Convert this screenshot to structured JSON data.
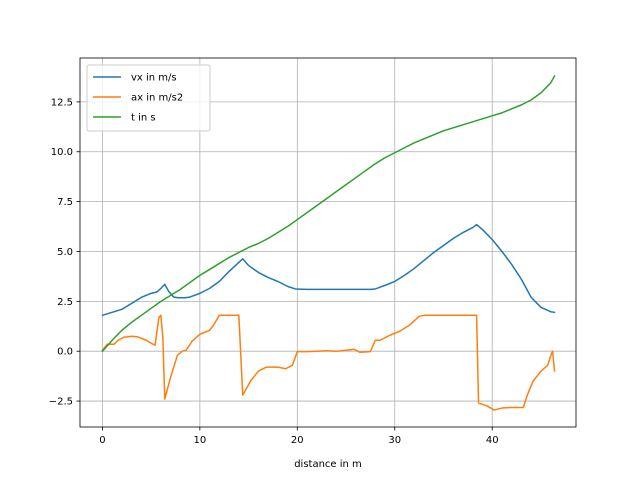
{
  "chart_data": {
    "type": "line",
    "title": "",
    "xlabel": "distance in m",
    "ylabel": "",
    "xlim": [
      -2.3,
      48.6
    ],
    "ylim": [
      -3.8,
      14.7
    ],
    "xticks": [
      0,
      10,
      20,
      30,
      40
    ],
    "yticks": [
      -2.5,
      0.0,
      2.5,
      5.0,
      7.5,
      10.0,
      12.5
    ],
    "xtick_labels": [
      "0",
      "10",
      "20",
      "30",
      "40"
    ],
    "ytick_labels": [
      "−2.5",
      "0.0",
      "2.5",
      "5.0",
      "7.5",
      "10.0",
      "12.5"
    ],
    "grid": true,
    "legend_position": "upper-left",
    "series": [
      {
        "name": "vx in m/s",
        "color": "#1f77b4",
        "points": [
          [
            0,
            1.8
          ],
          [
            1,
            1.95
          ],
          [
            2,
            2.1
          ],
          [
            3,
            2.4
          ],
          [
            4,
            2.7
          ],
          [
            5,
            2.9
          ],
          [
            5.6,
            2.97
          ],
          [
            6.0,
            3.15
          ],
          [
            6.4,
            3.35
          ],
          [
            6.8,
            3.0
          ],
          [
            7.3,
            2.72
          ],
          [
            7.8,
            2.68
          ],
          [
            8.5,
            2.68
          ],
          [
            9,
            2.72
          ],
          [
            10,
            2.9
          ],
          [
            11,
            3.15
          ],
          [
            12,
            3.5
          ],
          [
            13,
            4.0
          ],
          [
            14.4,
            4.63
          ],
          [
            15,
            4.3
          ],
          [
            16,
            3.95
          ],
          [
            17,
            3.7
          ],
          [
            18,
            3.5
          ],
          [
            19,
            3.25
          ],
          [
            19.8,
            3.12
          ],
          [
            21,
            3.1
          ],
          [
            23,
            3.1
          ],
          [
            25,
            3.1
          ],
          [
            27.5,
            3.1
          ],
          [
            28,
            3.12
          ],
          [
            29,
            3.3
          ],
          [
            30,
            3.5
          ],
          [
            31,
            3.8
          ],
          [
            32,
            4.15
          ],
          [
            33,
            4.55
          ],
          [
            34,
            4.95
          ],
          [
            35,
            5.3
          ],
          [
            36,
            5.65
          ],
          [
            37,
            5.95
          ],
          [
            38,
            6.2
          ],
          [
            38.4,
            6.35
          ],
          [
            39,
            6.1
          ],
          [
            40,
            5.6
          ],
          [
            41,
            5.0
          ],
          [
            42,
            4.35
          ],
          [
            43,
            3.6
          ],
          [
            44,
            2.7
          ],
          [
            45,
            2.2
          ],
          [
            46,
            1.98
          ],
          [
            46.4,
            1.95
          ]
        ]
      },
      {
        "name": "ax in m/s2",
        "color": "#ff7f0e",
        "points": [
          [
            0,
            0.05
          ],
          [
            0.5,
            0.35
          ],
          [
            1.2,
            0.35
          ],
          [
            1.6,
            0.55
          ],
          [
            2.2,
            0.7
          ],
          [
            3.0,
            0.75
          ],
          [
            3.6,
            0.72
          ],
          [
            4.5,
            0.55
          ],
          [
            5.0,
            0.4
          ],
          [
            5.4,
            0.3
          ],
          [
            5.8,
            1.7
          ],
          [
            6.0,
            1.8
          ],
          [
            6.2,
            0.7
          ],
          [
            6.4,
            -2.4
          ],
          [
            7.0,
            -1.3
          ],
          [
            7.7,
            -0.2
          ],
          [
            8.2,
            0.0
          ],
          [
            8.6,
            0.05
          ],
          [
            9.2,
            0.5
          ],
          [
            10,
            0.85
          ],
          [
            11,
            1.05
          ],
          [
            11.4,
            1.3
          ],
          [
            12,
            1.8
          ],
          [
            14.0,
            1.8
          ],
          [
            14.4,
            -2.2
          ],
          [
            15.2,
            -1.5
          ],
          [
            16,
            -1.0
          ],
          [
            16.8,
            -0.8
          ],
          [
            18,
            -0.8
          ],
          [
            18.8,
            -0.88
          ],
          [
            19.5,
            -0.7
          ],
          [
            20,
            -0.02
          ],
          [
            21,
            -0.02
          ],
          [
            22,
            0.0
          ],
          [
            23,
            0.02
          ],
          [
            24,
            0.0
          ],
          [
            25,
            0.05
          ],
          [
            25.8,
            0.1
          ],
          [
            26.4,
            -0.05
          ],
          [
            27.5,
            -0.02
          ],
          [
            28,
            0.55
          ],
          [
            28.5,
            0.55
          ],
          [
            29.5,
            0.8
          ],
          [
            30.5,
            1.0
          ],
          [
            31.5,
            1.3
          ],
          [
            32.5,
            1.75
          ],
          [
            33,
            1.8
          ],
          [
            38.4,
            1.8
          ],
          [
            38.6,
            -2.6
          ],
          [
            39.5,
            -2.75
          ],
          [
            40.2,
            -2.95
          ],
          [
            41,
            -2.85
          ],
          [
            42,
            -2.82
          ],
          [
            43.2,
            -2.82
          ],
          [
            43.6,
            -2.2
          ],
          [
            44.2,
            -1.5
          ],
          [
            45,
            -1.0
          ],
          [
            45.7,
            -0.7
          ],
          [
            46.1,
            -0.1
          ],
          [
            46.2,
            0.0
          ],
          [
            46.4,
            -1.0
          ]
        ]
      },
      {
        "name": "t in s",
        "color": "#2ca02c",
        "points": [
          [
            0,
            0.0
          ],
          [
            1,
            0.55
          ],
          [
            2,
            1.05
          ],
          [
            3,
            1.45
          ],
          [
            4,
            1.8
          ],
          [
            5,
            2.15
          ],
          [
            6,
            2.5
          ],
          [
            7,
            2.8
          ],
          [
            8,
            3.1
          ],
          [
            9,
            3.45
          ],
          [
            10,
            3.8
          ],
          [
            11,
            4.1
          ],
          [
            12,
            4.4
          ],
          [
            13,
            4.7
          ],
          [
            14,
            4.95
          ],
          [
            15,
            5.2
          ],
          [
            16,
            5.4
          ],
          [
            17,
            5.65
          ],
          [
            18,
            5.95
          ],
          [
            19,
            6.25
          ],
          [
            20,
            6.6
          ],
          [
            21,
            6.95
          ],
          [
            22,
            7.3
          ],
          [
            23,
            7.65
          ],
          [
            24,
            8.0
          ],
          [
            25,
            8.35
          ],
          [
            26,
            8.7
          ],
          [
            27,
            9.05
          ],
          [
            28,
            9.4
          ],
          [
            29,
            9.7
          ],
          [
            30,
            9.95
          ],
          [
            31,
            10.2
          ],
          [
            32,
            10.45
          ],
          [
            33,
            10.65
          ],
          [
            34,
            10.85
          ],
          [
            35,
            11.05
          ],
          [
            36,
            11.2
          ],
          [
            37,
            11.35
          ],
          [
            38,
            11.5
          ],
          [
            39,
            11.65
          ],
          [
            40,
            11.8
          ],
          [
            41,
            11.95
          ],
          [
            42,
            12.15
          ],
          [
            43,
            12.35
          ],
          [
            44,
            12.6
          ],
          [
            45,
            12.95
          ],
          [
            46,
            13.45
          ],
          [
            46.4,
            13.8
          ]
        ]
      }
    ]
  }
}
